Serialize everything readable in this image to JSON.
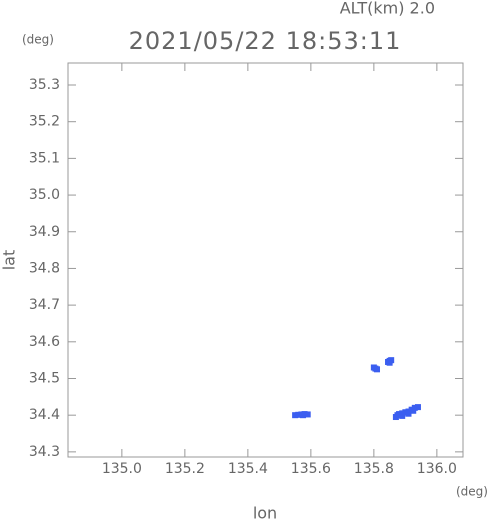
{
  "chart_data": {
    "type": "scatter",
    "title": "2021/05/22 18:53:11",
    "subtitle": "ALT(km) 2.0",
    "x_label": "lon",
    "y_label": "lat",
    "x_unit": "(deg)",
    "y_unit": "(deg)",
    "xlim": [
      134.829,
      136.083
    ],
    "ylim": [
      34.286,
      35.36
    ],
    "xticks": [
      {
        "value": 135,
        "label": "135.0"
      },
      135.2,
      135.4,
      135.6,
      135.8,
      {
        "value": 136,
        "label": "136.0"
      }
    ],
    "yticks": [
      34.3,
      34.4,
      34.5,
      34.6,
      34.7,
      34.8,
      34.9,
      {
        "value": 35,
        "label": "35.0"
      },
      35.1,
      35.2,
      35.3
    ],
    "color": "#3b5ef0",
    "x": [
      135.55,
      135.56,
      135.57,
      135.58,
      135.59,
      135.575,
      135.8,
      135.805,
      135.81,
      135.845,
      135.85,
      135.855,
      135.85,
      135.87,
      135.875,
      135.88,
      135.89,
      135.9,
      135.91,
      135.92,
      135.93,
      135.94,
      135.91,
      135.89,
      135.925
    ],
    "y": [
      34.4,
      34.401,
      34.402,
      34.403,
      34.402,
      34.4,
      34.53,
      34.527,
      34.525,
      34.545,
      34.548,
      34.55,
      34.543,
      34.395,
      34.4,
      34.403,
      34.405,
      34.408,
      34.41,
      34.415,
      34.42,
      34.422,
      34.404,
      34.398,
      34.412
    ]
  }
}
